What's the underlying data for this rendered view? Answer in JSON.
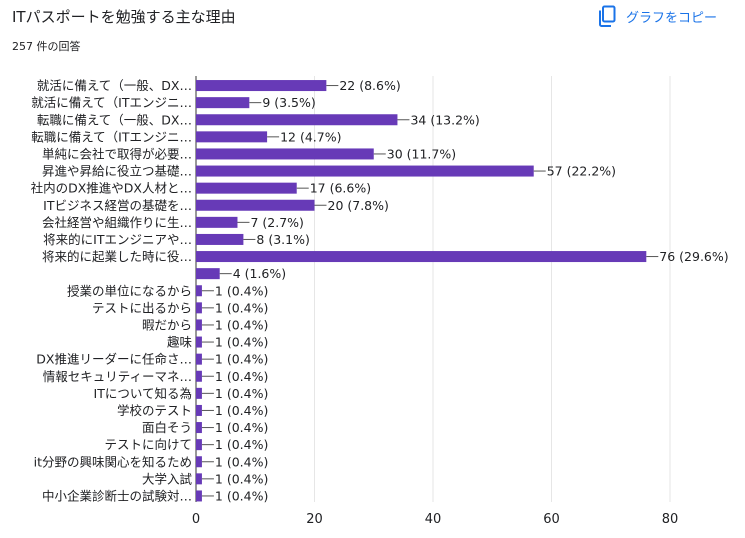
{
  "header": {
    "title": "ITパスポートを勉強する主な理由",
    "response_count": "257 件の回答",
    "copy_label": "グラフをコピー",
    "copy_icon": "copy-icon"
  },
  "colors": {
    "bar": "#673ab7",
    "link": "#1a73e8",
    "grid": "#e6e6e6"
  },
  "chart_data": {
    "type": "bar",
    "orientation": "horizontal",
    "categories": [
      "就活に備えて（一般、DX…",
      "就活に備えて（ITエンジニ…",
      "転職に備えて（一般、DX…",
      "転職に備えて（ITエンジニ…",
      "単純に会社で取得が必要…",
      "昇進や昇給に役立つ基礎…",
      "社内のDX推進やDX人材と…",
      "ITビジネス経営の基礎を…",
      "会社経営や組織作りに生…",
      "将来的にITエンジニアや…",
      "将来的に起業した時に役…",
      "",
      "授業の単位になるから",
      "テストに出るから",
      "暇だから",
      "趣味",
      "DX推進リーダーに任命さ…",
      "情報セキュリティーマネ…",
      "ITについて知る為",
      "学校のテスト",
      "面白そう",
      "テストに向けて",
      "it分野の興味関心を知るため",
      "大学入試",
      "中小企業診断士の試験対…"
    ],
    "values": [
      22,
      9,
      34,
      12,
      30,
      57,
      17,
      20,
      7,
      8,
      76,
      4,
      1,
      1,
      1,
      1,
      1,
      1,
      1,
      1,
      1,
      1,
      1,
      1,
      1
    ],
    "data_labels": [
      "22 (8.6%)",
      "9 (3.5%)",
      "34 (13.2%)",
      "12 (4.7%)",
      "30 (11.7%)",
      "57 (22.2%)",
      "17 (6.6%)",
      "20 (7.8%)",
      "7 (2.7%)",
      "8 (3.1%)",
      "76 (29.6%)",
      "4 (1.6%)",
      "1 (0.4%)",
      "1 (0.4%)",
      "1 (0.4%)",
      "1 (0.4%)",
      "1 (0.4%)",
      "1 (0.4%)",
      "1 (0.4%)",
      "1 (0.4%)",
      "1 (0.4%)",
      "1 (0.4%)",
      "1 (0.4%)",
      "1 (0.4%)",
      "1 (0.4%)"
    ],
    "xlim": [
      0,
      80
    ],
    "xticks": [
      0,
      20,
      40,
      60,
      80
    ],
    "grid": true,
    "legend": "none"
  }
}
